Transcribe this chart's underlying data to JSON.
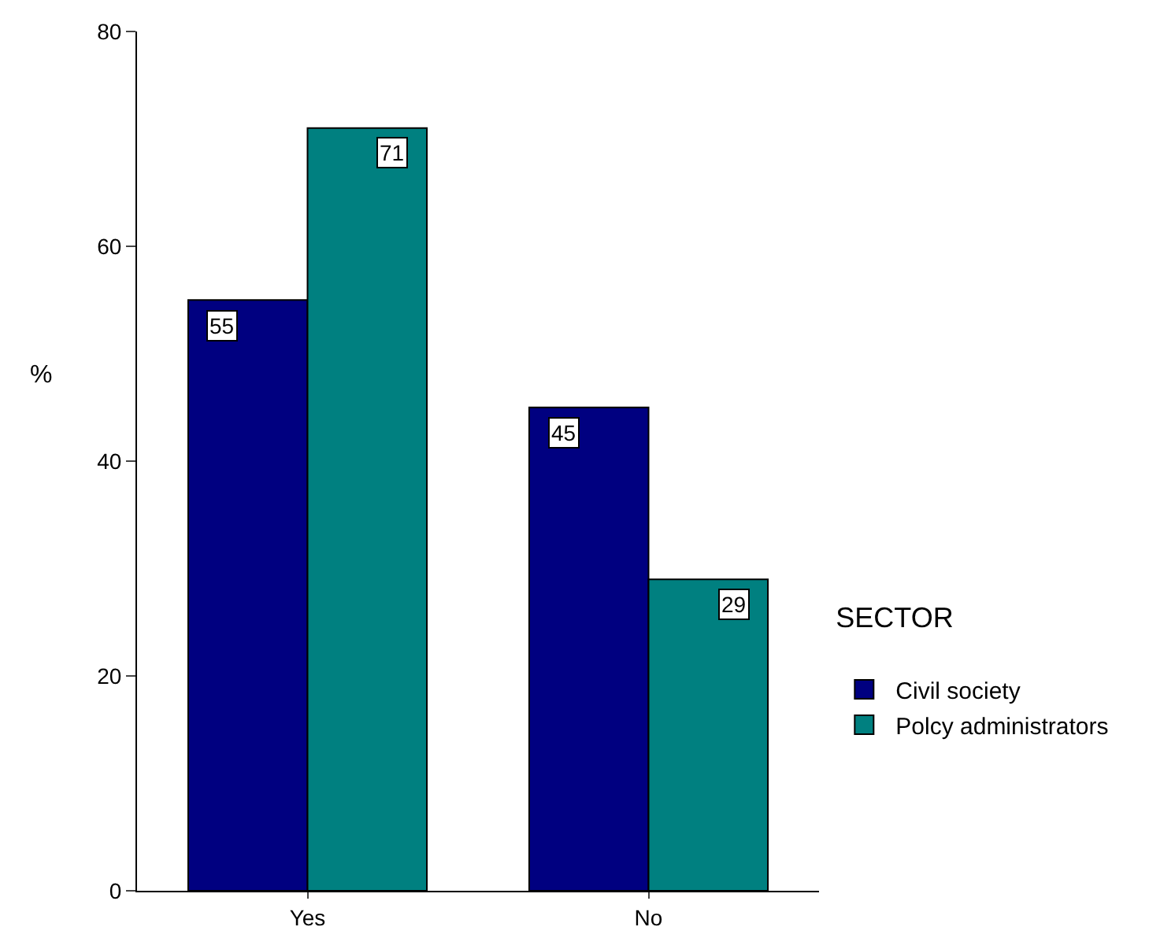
{
  "chart_data": {
    "type": "bar",
    "ylabel": "%",
    "legend_title": "SECTOR",
    "categories": [
      "Yes",
      "No"
    ],
    "series": [
      {
        "name": "Civil society",
        "color": "#000080",
        "values": [
          55,
          45
        ]
      },
      {
        "name": "Polcy administrators",
        "color": "#008080",
        "values": [
          71,
          29
        ]
      }
    ],
    "ylim": [
      0,
      80
    ],
    "yticks": [
      0,
      20,
      40,
      60,
      80
    ],
    "data_labels": true,
    "legend": "right"
  }
}
